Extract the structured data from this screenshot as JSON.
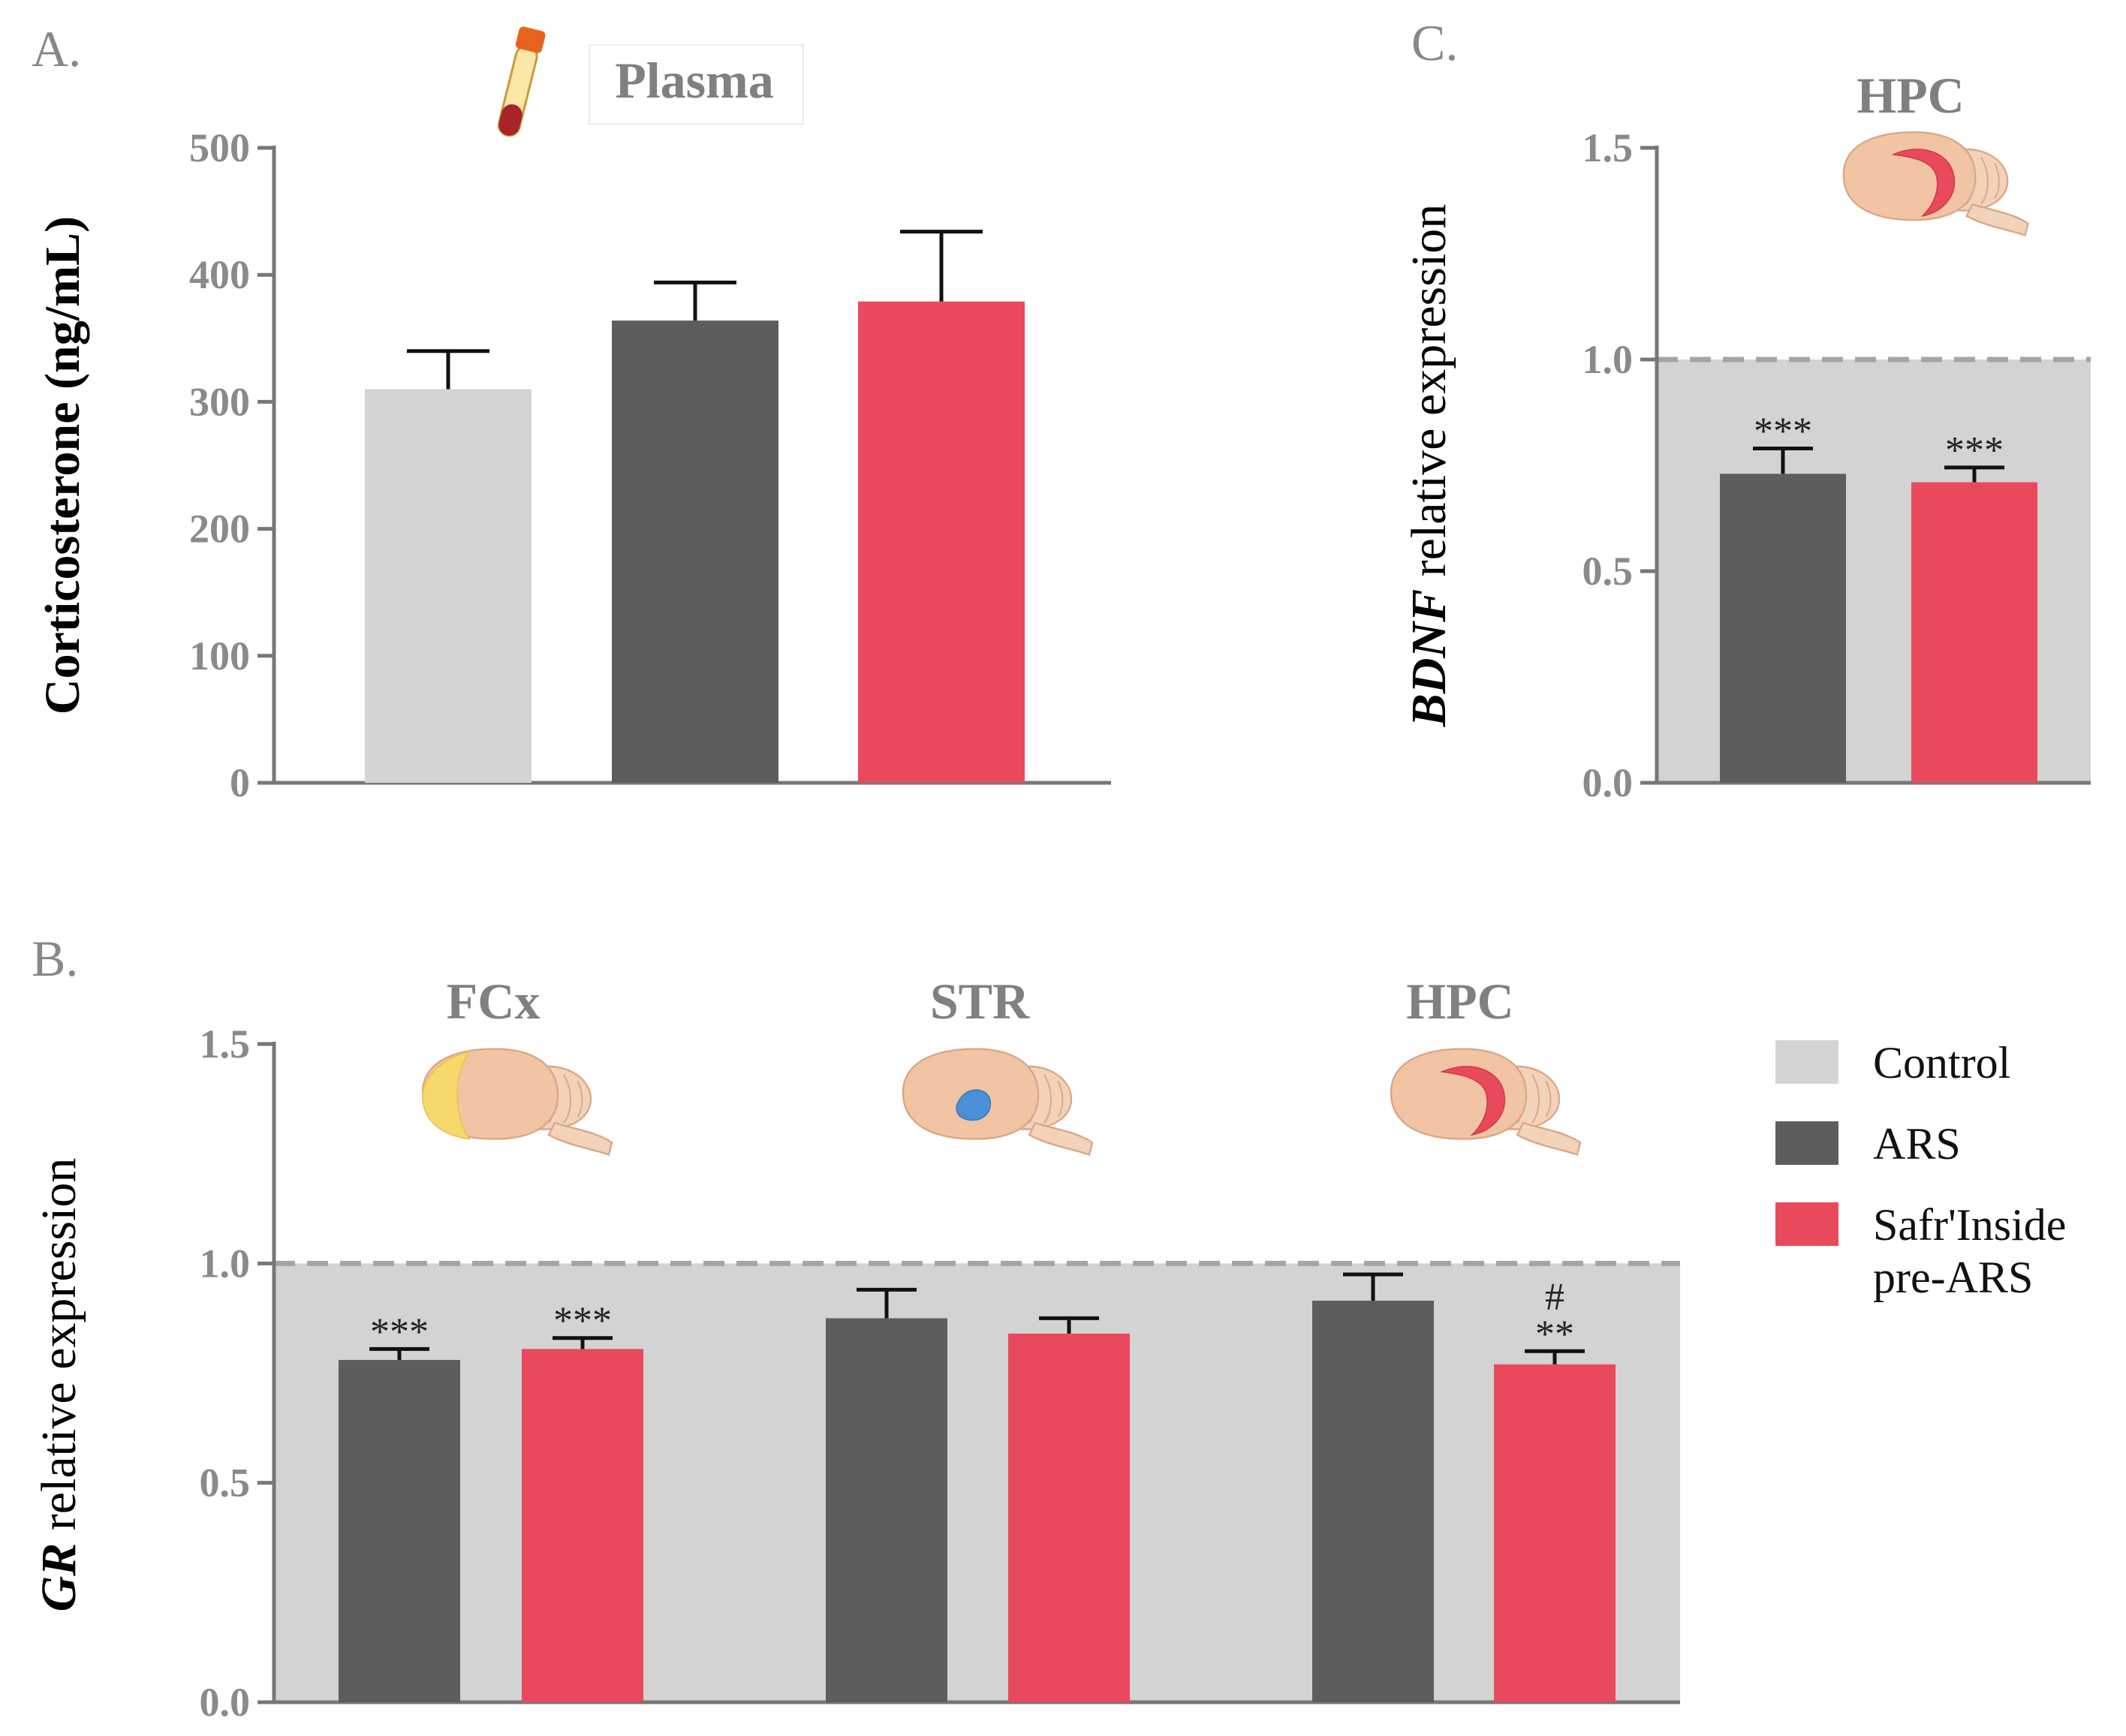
{
  "colors": {
    "control": "#d4d4d4",
    "ars": "#5d5d5d",
    "safr": "#e84a5c",
    "shade": "#d3d3d3",
    "brain": "#f1c4a4",
    "brain_outline": "#d9a888",
    "fcx_region": "#f6d86b",
    "str_region": "#4a90d9",
    "hpc_region": "#e84a5c",
    "tube_cap": "#e8641e",
    "tube_blood": "#a8242a"
  },
  "legend": [
    {
      "key": "control",
      "label": "Control"
    },
    {
      "key": "ars",
      "label": "ARS"
    },
    {
      "key": "safr",
      "label_lines": [
        "Safr'Inside",
        "pre-ARS"
      ]
    }
  ],
  "chart_data": [
    {
      "id": "A",
      "panel_label": "A.",
      "type": "bar",
      "title": "Plasma",
      "title_icon": "blood-tube-icon",
      "ylabel": "Corticosterone (ng/mL)",
      "ylim": [
        0,
        500
      ],
      "yticks": [
        0,
        100,
        200,
        300,
        400,
        500
      ],
      "ytick_labels": [
        "0",
        "100",
        "200",
        "300",
        "400",
        "500"
      ],
      "categories": [
        "Control",
        "ARS",
        "Safr'Inside pre-ARS"
      ],
      "series": [
        {
          "name": "Corticosterone",
          "values": [
            310,
            364,
            379
          ],
          "errors": [
            30,
            30,
            55
          ],
          "color_keys": [
            "control",
            "ars",
            "safr"
          ]
        }
      ]
    },
    {
      "id": "C",
      "panel_label": "C.",
      "type": "bar",
      "ylabel_italic": "BDNF",
      "ylabel_rest": " relative expression",
      "ylim": [
        0,
        1.5
      ],
      "yticks": [
        0,
        0.5,
        1.0,
        1.5
      ],
      "ytick_labels": [
        "0.0",
        "0.5",
        "1.0",
        "1.5"
      ],
      "reference_line": 1.0,
      "shaded_below_reference": true,
      "groups": [
        {
          "label": "HPC",
          "region_icon": "hippocampus",
          "bars": [
            {
              "series": "ARS",
              "color_key": "ars",
              "value": 0.73,
              "error": 0.06,
              "sig": [
                "***"
              ]
            },
            {
              "series": "Safr'Inside pre-ARS",
              "color_key": "safr",
              "value": 0.71,
              "error": 0.035,
              "sig": [
                "***"
              ]
            }
          ]
        }
      ]
    },
    {
      "id": "B",
      "panel_label": "B.",
      "type": "bar",
      "ylabel_italic": "GR",
      "ylabel_rest": " relative expression",
      "ylim": [
        0,
        1.5
      ],
      "yticks": [
        0,
        0.5,
        1.0,
        1.5
      ],
      "ytick_labels": [
        "0.0",
        "0.5",
        "1.0",
        "1.5"
      ],
      "reference_line": 1.0,
      "shaded_below_reference": true,
      "groups": [
        {
          "label": "FCx",
          "region_icon": "frontal-cortex",
          "bars": [
            {
              "series": "ARS",
              "color_key": "ars",
              "value": 0.78,
              "error": 0.025,
              "sig": [
                "***"
              ]
            },
            {
              "series": "Safr'Inside pre-ARS",
              "color_key": "safr",
              "value": 0.805,
              "error": 0.025,
              "sig": [
                "***"
              ]
            }
          ]
        },
        {
          "label": "STR",
          "region_icon": "striatum",
          "bars": [
            {
              "series": "ARS",
              "color_key": "ars",
              "value": 0.875,
              "error": 0.065,
              "sig": []
            },
            {
              "series": "Safr'Inside pre-ARS",
              "color_key": "safr",
              "value": 0.84,
              "error": 0.035,
              "sig": []
            }
          ]
        },
        {
          "label": "HPC",
          "region_icon": "hippocampus",
          "bars": [
            {
              "series": "ARS",
              "color_key": "ars",
              "value": 0.915,
              "error": 0.06,
              "sig": []
            },
            {
              "series": "Safr'Inside pre-ARS",
              "color_key": "safr",
              "value": 0.77,
              "error": 0.03,
              "sig": [
                "#",
                "**"
              ]
            }
          ]
        }
      ]
    }
  ]
}
